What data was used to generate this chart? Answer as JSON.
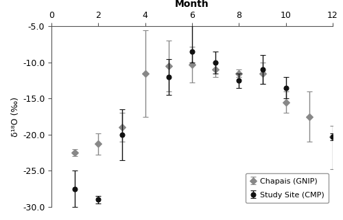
{
  "title": "Month",
  "ylabel": "δ¹⁸O (‰)",
  "xlim": [
    0,
    12
  ],
  "ylim_bottom": -30.0,
  "ylim_top": -5.0,
  "xticks": [
    0,
    2,
    4,
    6,
    8,
    10,
    12
  ],
  "yticks": [
    -30.0,
    -25.0,
    -20.0,
    -15.0,
    -10.0,
    -5.0
  ],
  "chapais_months": [
    1,
    2,
    3,
    4,
    5,
    6,
    7,
    8,
    9,
    10,
    11,
    12
  ],
  "chapais_values": [
    -22.5,
    -21.3,
    -19.0,
    -11.5,
    -10.5,
    -10.3,
    -11.0,
    -11.5,
    -11.5,
    -15.5,
    -17.5,
    -20.3
  ],
  "chapais_err_up": [
    0.5,
    1.5,
    2.0,
    6.0,
    3.5,
    2.5,
    1.0,
    0.5,
    1.5,
    1.5,
    3.5,
    1.5
  ],
  "chapais_err_dn": [
    0.5,
    1.5,
    2.0,
    6.0,
    3.5,
    2.5,
    1.0,
    0.5,
    1.5,
    1.5,
    3.5,
    4.5
  ],
  "cmp_months": [
    1,
    2,
    3,
    5,
    6,
    7,
    8,
    9,
    10,
    12
  ],
  "cmp_values": [
    -27.5,
    -29.0,
    -20.0,
    -12.0,
    -8.5,
    -10.0,
    -12.5,
    -11.0,
    -13.5,
    -20.3
  ],
  "cmp_err_up": [
    2.5,
    0.5,
    3.5,
    2.5,
    4.5,
    1.5,
    1.0,
    2.0,
    1.5,
    0.5
  ],
  "cmp_err_dn": [
    2.5,
    0.5,
    3.5,
    2.5,
    1.5,
    1.5,
    1.0,
    2.0,
    1.5,
    0.5
  ],
  "chapais_color": "#888888",
  "cmp_color": "#111111",
  "chapais_marker": "D",
  "cmp_marker": "o",
  "chapais_label": "Chapais (GNIP)",
  "cmp_label": "Study Site (CMP)",
  "background_color": "#ffffff",
  "marker_size": 5,
  "capsize": 3,
  "elinewidth": 1.0
}
